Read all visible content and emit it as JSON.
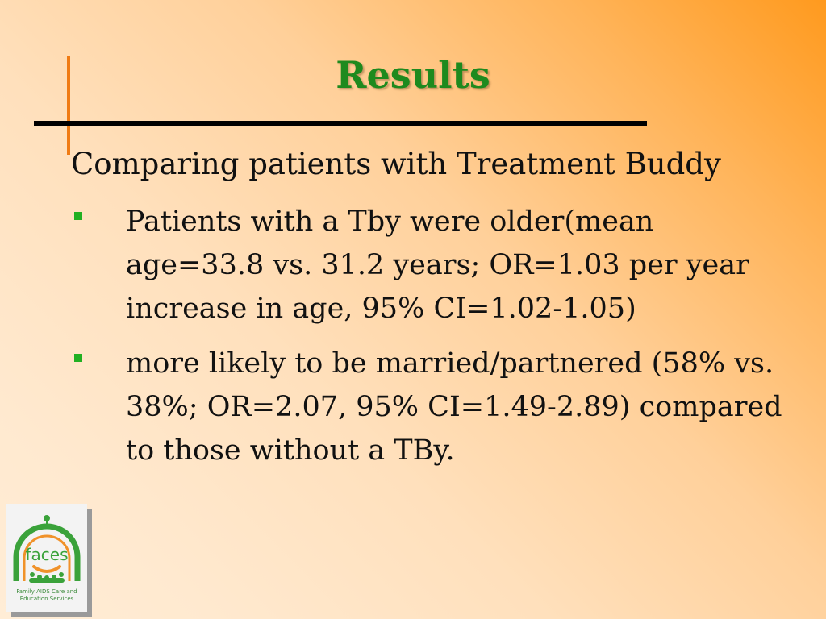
{
  "slide": {
    "title": "Results",
    "subtitle": "Comparing patients with Treatment Buddy",
    "bullets": [
      "Patients with a Tby were older(mean age=33.8 vs. 31.2 years; OR=1.03 per year increase in age, 95% CI=1.02-1.05)",
      "more likely to be married/partnered (58% vs. 38%; OR=2.07, 95% CI=1.49-2.89) compared to those without a TBy."
    ]
  },
  "logo": {
    "word": "faces",
    "caption_line1": "Family AIDS Care and",
    "caption_line2": "Education Services",
    "colors": {
      "green": "#3aa23a",
      "orange": "#f0922a"
    }
  },
  "colors": {
    "title": "#1e8a1e",
    "accent_rule": "#f07b14",
    "bullet": "#22b022"
  }
}
